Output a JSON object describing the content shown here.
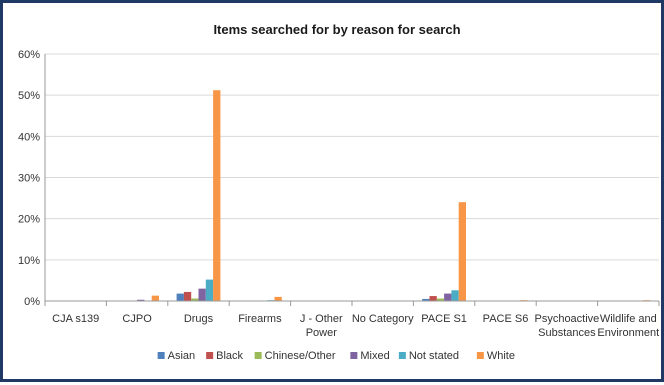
{
  "chart_data": {
    "type": "bar",
    "title": "Items searched for by reason for search",
    "xlabel": "",
    "ylabel": "",
    "ylim": [
      0,
      60
    ],
    "yticks": [
      "0%",
      "10%",
      "20%",
      "30%",
      "40%",
      "50%",
      "60%"
    ],
    "grid": true,
    "legend": "bottom",
    "categories": [
      "CJA s139",
      "CJPO",
      "Drugs",
      "Firearms",
      "J - Other Power",
      "No Category",
      "PACE S1",
      "PACE S6",
      "Psychoactive Substances",
      "Wildlife and Environment"
    ],
    "category_lines": [
      [
        "CJA s139"
      ],
      [
        "CJPO"
      ],
      [
        "Drugs"
      ],
      [
        "Firearms"
      ],
      [
        "J - Other",
        "Power"
      ],
      [
        "No Category"
      ],
      [
        "PACE S1"
      ],
      [
        "PACE S6"
      ],
      [
        "Psychoactive",
        "Substances"
      ],
      [
        "Wildlife and",
        "Environment"
      ]
    ],
    "series": [
      {
        "name": "Asian",
        "color": "#4f81bd",
        "values": [
          0,
          0.1,
          1.8,
          0,
          0,
          0,
          0.5,
          0,
          0,
          0
        ]
      },
      {
        "name": "Black",
        "color": "#c0504d",
        "values": [
          0,
          0.1,
          2.2,
          0,
          0,
          0,
          1.2,
          0,
          0,
          0
        ]
      },
      {
        "name": "Chinese/Other",
        "color": "#9bbb59",
        "values": [
          0,
          0.05,
          0.6,
          0,
          0,
          0,
          0.6,
          0,
          0,
          0
        ]
      },
      {
        "name": "Mixed",
        "color": "#8064a2",
        "values": [
          0,
          0.3,
          3.0,
          0,
          0,
          0,
          1.8,
          0,
          0,
          0
        ]
      },
      {
        "name": "Not stated",
        "color": "#4bacc6",
        "values": [
          0,
          0.1,
          5.2,
          0.2,
          0,
          0,
          2.6,
          0,
          0,
          0
        ]
      },
      {
        "name": "White",
        "color": "#f79646",
        "values": [
          0,
          1.3,
          51.2,
          1.0,
          0,
          0,
          24.0,
          0.2,
          0,
          0.2
        ]
      }
    ]
  }
}
